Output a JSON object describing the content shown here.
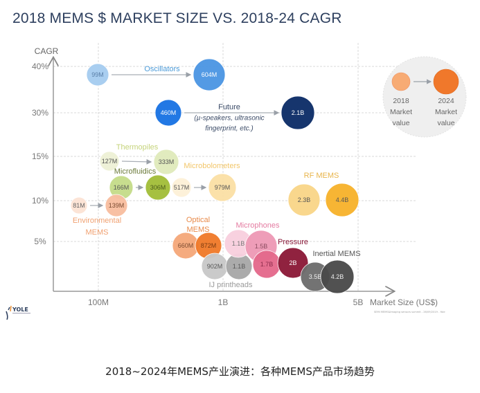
{
  "title": "2018 MEMS $ MARKET SIZE VS. 2018-24 CAGR",
  "caption": "2018~2024年MEMS产业演进：各种MEMS产品市场趋势",
  "footnote": "SEMI MEMS&Imaging sensors summit - 26/09/2019 - Yole",
  "logo_text": "YOLE",
  "chart_data": {
    "type": "bubble",
    "title": "2018 MEMS $ MARKET SIZE VS. 2018-24 CAGR",
    "xlabel": "Market Size (US$)",
    "ylabel": "CAGR",
    "x_scale": "log",
    "x_ticks": [
      "100M",
      "1B",
      "5B"
    ],
    "y_ticks": [
      "40%",
      "30%",
      "15%",
      "10%",
      "5%"
    ],
    "grid": true,
    "legend": {
      "position": "top-right",
      "items": [
        {
          "label": "2018 Market value",
          "line1": "2018",
          "line2": "Market",
          "line3": "value",
          "color": "#f7ab74"
        },
        {
          "label": "2024 Market value",
          "line1": "2024",
          "line2": "Market",
          "line3": "value",
          "color": "#f0782b"
        }
      ]
    },
    "series": [
      {
        "name": "Oscillators",
        "label": "Oscillators",
        "label_color": "#4a9ad8",
        "arrow": true,
        "points": [
          {
            "label": "99M",
            "year": 2018,
            "color": "#a6cdf0",
            "text": "#5a7fa8"
          },
          {
            "label": "604M",
            "year": 2024,
            "color": "#4d96e3",
            "text": "#ffffff"
          }
        ]
      },
      {
        "name": "Future",
        "label": "Future",
        "sublabel1": "(µ-speakers, ultrasonic",
        "sublabel2": "fingerprint, etc.)",
        "label_color": "#3a4a66",
        "arrow": true,
        "points": [
          {
            "label": "460M",
            "year": 2018,
            "color": "#1a73e3",
            "text": "#ffffff"
          },
          {
            "label": "2.1B",
            "year": 2024,
            "color": "#0d2d68",
            "text": "#ffffff"
          }
        ]
      },
      {
        "name": "Thermopiles",
        "label": "Thermopiles",
        "label_color": "#c5d37a",
        "arrow": true,
        "points": [
          {
            "label": "127M",
            "year": 2018,
            "color": "#eef1d6",
            "text": "#555"
          },
          {
            "label": "333M",
            "year": 2024,
            "color": "#e0ebbc",
            "text": "#555"
          }
        ]
      },
      {
        "name": "Microfluidics",
        "label": "Microfluidics",
        "label_color": "#6b7a3a",
        "arrow": true,
        "points": [
          {
            "label": "166M",
            "year": 2018,
            "color": "#c5dc8a",
            "text": "#555"
          },
          {
            "label": "306M",
            "year": 2024,
            "color": "#a3be3a",
            "text": "#4a5a1a"
          }
        ]
      },
      {
        "name": "Microbolometers",
        "label": "Microbolometers",
        "label_color": "#f2c66a",
        "arrow": true,
        "points": [
          {
            "label": "517M",
            "year": 2018,
            "color": "#fdf1d8",
            "text": "#555"
          },
          {
            "label": "979M",
            "year": 2024,
            "color": "#fbe0a6",
            "text": "#555"
          }
        ]
      },
      {
        "name": "Environmental MEMS",
        "label": "Environmental",
        "label2": "MEMS",
        "label_color": "#f0a070",
        "arrow": true,
        "points": [
          {
            "label": "81M",
            "year": 2018,
            "color": "#fce3d5",
            "text": "#666"
          },
          {
            "label": "139M",
            "year": 2024,
            "color": "#f8bea0",
            "text": "#7a4a30"
          }
        ]
      },
      {
        "name": "RF MEMS",
        "label": "RF MEMS",
        "label_color": "#e8b44a",
        "arrow": true,
        "points": [
          {
            "label": "2.3B",
            "year": 2018,
            "color": "#f9d689",
            "text": "#555"
          },
          {
            "label": "4.4B",
            "year": 2024,
            "color": "#f7b22c",
            "text": "#555"
          }
        ]
      },
      {
        "name": "Optical MEMS",
        "label": "Optical",
        "label2": "MEMS",
        "label_color": "#e88a4a",
        "arrow": false,
        "points": [
          {
            "label": "660M",
            "year": 2018,
            "color": "#f5a87a",
            "text": "#7a4a30"
          },
          {
            "label": "872M",
            "year": 2024,
            "color": "#f07a2a",
            "text": "#7a3a10"
          }
        ]
      },
      {
        "name": "IJ printheads",
        "label": "IJ printheads",
        "label_color": "#9a9a9a",
        "arrow": false,
        "points": [
          {
            "label": "902M",
            "year": 2018,
            "color": "#c8c8c8",
            "text": "#555"
          },
          {
            "label": "1.1B",
            "year": 2024,
            "color": "#a8a8a8",
            "text": "#555"
          }
        ]
      },
      {
        "name": "Microphones",
        "label": "Microphones",
        "label_color": "#e47aa0",
        "arrow": false,
        "points": [
          {
            "label": "1.1B",
            "year": 2018,
            "color": "#f8d0de",
            "text": "#777"
          },
          {
            "label": "1.5B",
            "year": 2024,
            "color": "#ee9ab6",
            "text": "#8a4a5e"
          }
        ]
      },
      {
        "name": "Pressure",
        "label": "Pressure",
        "label_color": "#8a1a3a",
        "arrow": true,
        "points": [
          {
            "label": "1.7B",
            "year": 2018,
            "color": "#e46a8c",
            "text": "#8a2a4a"
          },
          {
            "label": "2B",
            "year": 2024,
            "color": "#8c1a38",
            "text": "#ffffff"
          }
        ]
      },
      {
        "name": "Inertial MEMS",
        "label": "Inertial MEMS",
        "label_color": "#555555",
        "arrow": true,
        "points": [
          {
            "label": "3.5B",
            "year": 2018,
            "color": "#6e6e6e",
            "text": "#eeeeee"
          },
          {
            "label": "4.2B",
            "year": 2024,
            "color": "#4a4a4a",
            "text": "#eeeeee"
          }
        ]
      }
    ]
  }
}
